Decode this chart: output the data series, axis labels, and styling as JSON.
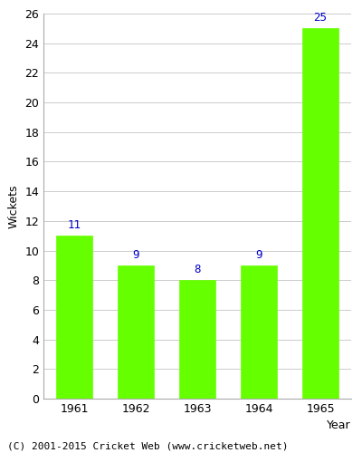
{
  "years": [
    "1961",
    "1962",
    "1963",
    "1964",
    "1965"
  ],
  "values": [
    11,
    9,
    8,
    9,
    25
  ],
  "bar_color": "#66ff00",
  "bar_edge_color": "#66ff00",
  "label_color": "#0000cc",
  "xlabel": "Year",
  "ylabel": "Wickets",
  "ylim": [
    0,
    26
  ],
  "yticks": [
    0,
    2,
    4,
    6,
    8,
    10,
    12,
    14,
    16,
    18,
    20,
    22,
    24,
    26
  ],
  "footer": "(C) 2001-2015 Cricket Web (www.cricketweb.net)",
  "bg_color": "#ffffff",
  "plot_bg_color": "#ffffff",
  "grid_color": "#cccccc",
  "label_fontsize": 9,
  "axis_fontsize": 9,
  "footer_fontsize": 8
}
